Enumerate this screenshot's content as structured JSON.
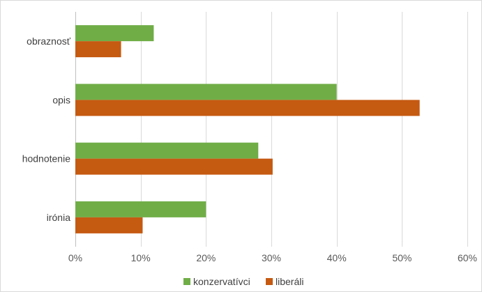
{
  "chart_data": {
    "type": "bar",
    "orientation": "horizontal",
    "categories": [
      "obraznosť",
      "opis",
      "hodnotenie",
      "irónia"
    ],
    "series": [
      {
        "name": "konzervatívci",
        "color": "#70ad47",
        "values": [
          12,
          40,
          28,
          20
        ]
      },
      {
        "name": "liberáli",
        "color": "#c55a11",
        "values": [
          7,
          52.7,
          30.2,
          10.3
        ]
      }
    ],
    "xlim": [
      0,
      60
    ],
    "xticks": [
      0,
      10,
      20,
      30,
      40,
      50,
      60
    ],
    "tick_suffix": "%",
    "grid": true,
    "grid_color": "#d9d9d9",
    "legend_position": "bottom"
  }
}
